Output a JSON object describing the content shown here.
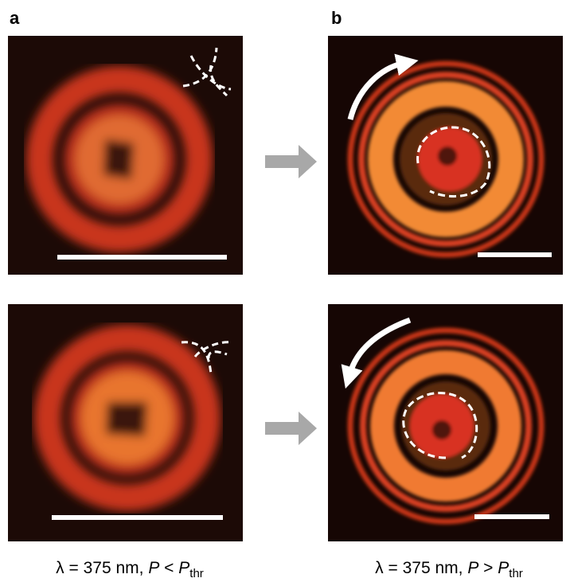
{
  "labels": [
    "a",
    "b"
  ],
  "captions": [
    {
      "text": "λ = 375 nm, ",
      "var": "P",
      "op": " < ",
      "var2": "P",
      "sub": "thr"
    },
    {
      "text": "λ = 375 nm, ",
      "var": "P",
      "op": " > ",
      "var2": "P",
      "sub": "thr"
    }
  ]
}
